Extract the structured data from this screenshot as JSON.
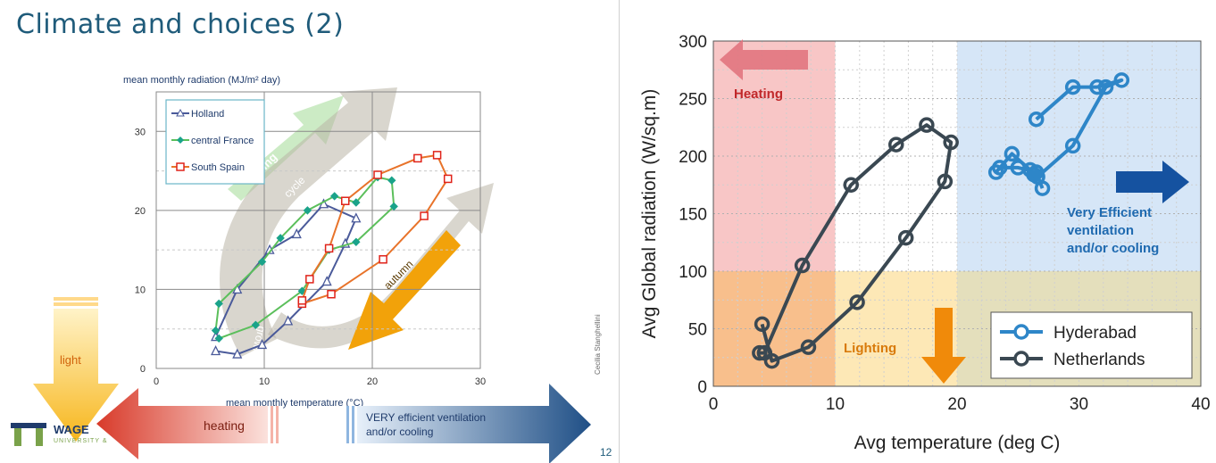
{
  "slide": {
    "title": "Climate and choices (2)",
    "page_number": "12",
    "author": "Cecilia Stanghellini",
    "logo_text": "WAGE",
    "logo_sub": "UNIVERSITY &"
  },
  "left_chart_labels": {
    "arrows": {
      "spring": "spring",
      "cycle": "cycle",
      "typical": "typical",
      "growing": "growing",
      "autumn": "autumn",
      "light": "light",
      "heating": "heating",
      "ventilation": "VERY efficient ventilation and/or cooling",
      "ventilation_line1": "VERY efficient ventilation",
      "ventilation_line2": "and/or cooling"
    }
  },
  "right_chart_labels": {
    "heating": "Heating",
    "lighting": "Lighting",
    "very_efficient": "Very Efficient ventilation and/or cooling",
    "very_efficient_line1": "Very Efficient",
    "very_efficient_line2": "ventilation",
    "very_efficient_line3": "and/or cooling"
  },
  "chart_data": [
    {
      "type": "line",
      "title": "mean monthly radiation (MJ/m² day)",
      "xlabel": "mean monthly temperature (°C)",
      "ylabel": "",
      "xlim": [
        0,
        30
      ],
      "ylim": [
        0,
        35
      ],
      "x_ticks": [
        "0",
        "10",
        "20",
        "30"
      ],
      "y_ticks": [
        "0",
        "10",
        "20",
        "30"
      ],
      "grid": true,
      "legend_position": "top-left",
      "series": [
        {
          "name": "Holland",
          "color": "#4a5a9a",
          "marker": "triangle",
          "x": [
            5.5,
            7.5,
            9.8,
            12.2,
            15.8,
            17.5,
            18.5,
            15.5,
            13.0,
            10.5,
            7.5,
            5.5
          ],
          "y": [
            2.2,
            1.8,
            3.0,
            6.0,
            11.0,
            15.8,
            19.0,
            20.8,
            17.0,
            15.0,
            10.0,
            4.0
          ]
        },
        {
          "name": "central France",
          "color": "#5bbf5b",
          "marker": "diamond",
          "x": [
            5.8,
            9.2,
            13.5,
            16.0,
            18.5,
            22.0,
            21.8,
            20.5,
            18.5,
            16.5,
            14.0,
            11.5,
            9.8,
            5.8,
            5.5
          ],
          "y": [
            3.8,
            5.5,
            9.8,
            15.0,
            16.0,
            20.5,
            23.8,
            24.2,
            21.0,
            21.8,
            20.0,
            16.5,
            13.5,
            8.2,
            4.8
          ]
        },
        {
          "name": "South Spain",
          "color": "#e8732a",
          "marker": "square",
          "x": [
            13.5,
            16.2,
            21.0,
            24.8,
            27.0,
            26.0,
            24.2,
            20.5,
            17.5,
            16.0,
            14.2,
            13.5
          ],
          "y": [
            8.2,
            9.4,
            13.8,
            19.3,
            24.0,
            27.0,
            26.6,
            24.5,
            21.2,
            15.2,
            11.3,
            8.6
          ]
        }
      ]
    },
    {
      "type": "line",
      "title": "",
      "xlabel": "Avg temperature (deg C)",
      "ylabel": "Avg Global radiation (W/sq.m)",
      "xlim": [
        0,
        40
      ],
      "ylim": [
        0,
        300
      ],
      "x_ticks": [
        "0",
        "10",
        "20",
        "30",
        "40"
      ],
      "y_ticks": [
        "0",
        "50",
        "100",
        "150",
        "200",
        "250",
        "300"
      ],
      "grid": true,
      "legend_position": "bottom-right",
      "regions": [
        {
          "name": "heating",
          "x": [
            0,
            10
          ],
          "y": [
            100,
            300
          ],
          "color": "#f8c6c6"
        },
        {
          "name": "heating+lighting",
          "x": [
            0,
            10
          ],
          "y": [
            0,
            100
          ],
          "color": "#f8bf8c"
        },
        {
          "name": "lighting",
          "x": [
            10,
            20
          ],
          "y": [
            0,
            100
          ],
          "color": "#fde8b6"
        },
        {
          "name": "cooling",
          "x": [
            20,
            40
          ],
          "y": [
            100,
            300
          ],
          "color": "#d6e6f7"
        },
        {
          "name": "cooling+lighting",
          "x": [
            20,
            40
          ],
          "y": [
            0,
            100
          ],
          "color": "#e4dfbc"
        }
      ],
      "series": [
        {
          "name": "Hyderabad",
          "color": "#2e86c8",
          "x": [
            27.0,
            26.5,
            25.0,
            23.5,
            23.2,
            24.5,
            26.0,
            26.3,
            26.6,
            29.5,
            32.2,
            33.5,
            31.5,
            29.5,
            26.5
          ],
          "y": [
            172,
            186,
            190,
            190,
            186,
            202,
            188,
            184,
            182,
            209,
            260,
            266,
            260,
            260,
            232
          ]
        },
        {
          "name": "Netherlands",
          "color": "#3a4852",
          "x": [
            4.0,
            4.8,
            7.8,
            11.8,
            15.8,
            19.0,
            19.5,
            17.5,
            15.0,
            11.3,
            7.3,
            4.2,
            3.8
          ],
          "y": [
            54,
            22,
            34,
            73,
            129,
            178,
            212,
            227,
            210,
            175,
            105,
            29,
            29
          ]
        }
      ]
    }
  ]
}
